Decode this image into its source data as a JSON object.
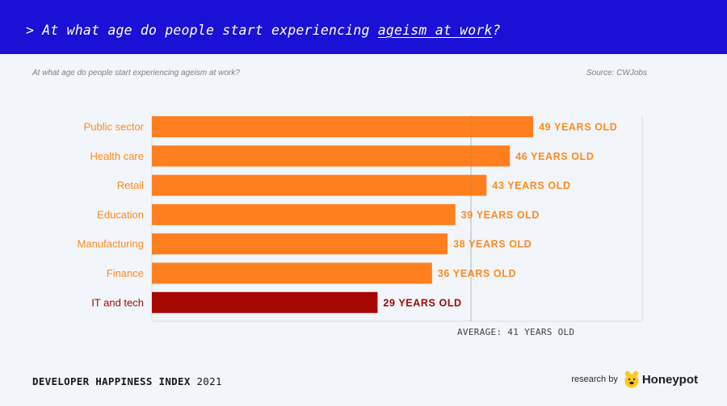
{
  "header": {
    "prefix": "> At what age do people start experiencing ",
    "highlight": "ageism at work",
    "suffix": "?"
  },
  "subtitle": "At what age do people start experiencing ageism at work?",
  "source": "Source: CWJobs",
  "average_label": "AVERAGE: 41 YEARS OLD",
  "footer": {
    "index_title": "DEVELOPER HAPPINESS INDEX",
    "year": "2021",
    "research_by": "research by",
    "brand": "Honeypot",
    "logo_icon": "honeypot-bear-icon"
  },
  "colors": {
    "header_bg": "#1b10d6",
    "bar": "#ff7f1e",
    "highlight_bar": "#a70802",
    "label": "#ff8a1f",
    "highlight_label": "#9e0a02"
  },
  "chart_data": {
    "type": "bar",
    "orientation": "horizontal",
    "categories": [
      "Public sector",
      "Health care",
      "Retail",
      "Education",
      "Manufacturing",
      "Finance",
      "IT and tech"
    ],
    "values": [
      49,
      46,
      43,
      39,
      38,
      36,
      29
    ],
    "value_labels": [
      "49 YEARS OLD",
      "46 YEARS OLD",
      "43 YEARS OLD",
      "39 YEARS OLD",
      "38 YEARS OLD",
      "36 YEARS OLD",
      "29 YEARS OLD"
    ],
    "highlight": "IT and tech",
    "average": 41,
    "xlim": [
      0,
      63
    ],
    "title": "",
    "xlabel": "",
    "ylabel": ""
  }
}
